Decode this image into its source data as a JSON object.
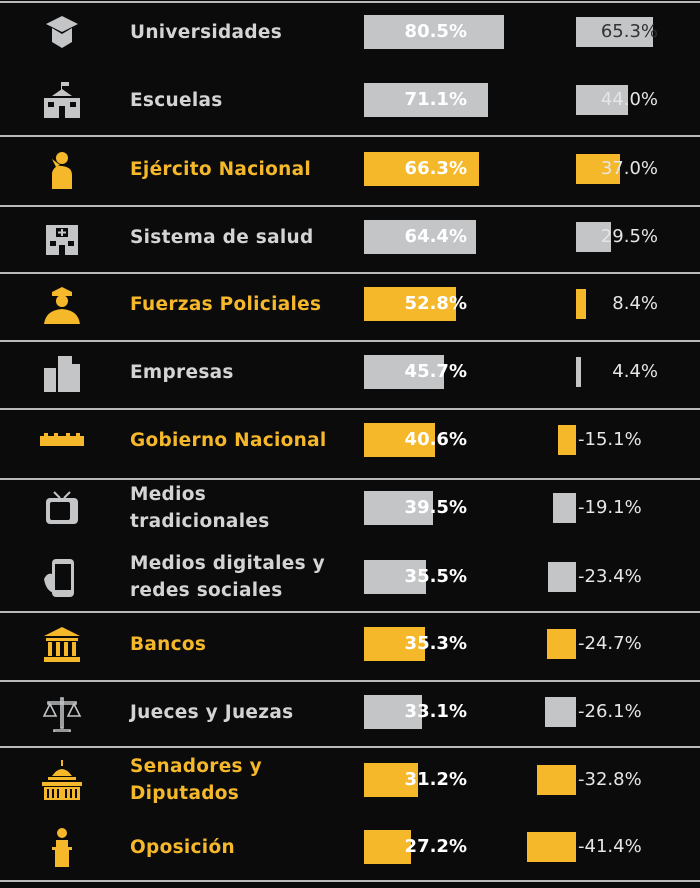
{
  "colors": {
    "highlight": "#f5b82a",
    "neutral": "#c3c5c7",
    "background": "#0b0b0b",
    "neutral_text": "#d4d4d4"
  },
  "chart_data": {
    "type": "bar",
    "title": "",
    "categories": [
      "Universidades",
      "Escuelas",
      "Ejército Nacional",
      "Sistema de salud",
      "Fuerzas Policiales",
      "Empresas",
      "Gobierno Nacional",
      "Medios tradicionales",
      "Medios digitales y redes sociales",
      "Bancos",
      "Jueces y Juezas",
      "Senadores y Diputados",
      "Oposición"
    ],
    "category_lines": [
      [
        "Universidades"
      ],
      [
        "Escuelas"
      ],
      [
        "Ejército Nacional"
      ],
      [
        "Sistema de salud"
      ],
      [
        "Fuerzas Policiales"
      ],
      [
        "Empresas"
      ],
      [
        "Gobierno Nacional"
      ],
      [
        "Medios",
        "tradicionales"
      ],
      [
        "Medios digitales y",
        "redes sociales"
      ],
      [
        "Bancos"
      ],
      [
        "Jueces y Juezas"
      ],
      [
        "Senadores y",
        "Diputados"
      ],
      [
        "Oposición"
      ]
    ],
    "icons": [
      "graduation-cap-icon",
      "school-icon",
      "soldier-icon",
      "hospital-icon",
      "police-icon",
      "buildings-icon",
      "government-icon",
      "tv-icon",
      "smartphone-icon",
      "bank-icon",
      "scales-icon",
      "capitol-icon",
      "podium-icon"
    ],
    "highlighted": [
      false,
      false,
      true,
      false,
      true,
      false,
      true,
      false,
      false,
      true,
      false,
      true,
      true
    ],
    "series": [
      {
        "name": "column-1",
        "values": [
          80.5,
          71.1,
          66.3,
          64.4,
          52.8,
          45.7,
          40.6,
          39.5,
          35.5,
          35.3,
          33.1,
          31.2,
          27.2
        ],
        "labels": [
          "80.5%",
          "71.1%",
          "66.3%",
          "64.4%",
          "52.8%",
          "45.7%",
          "40.6%",
          "39.5%",
          "35.5%",
          "35.3%",
          "33.1%",
          "31.2%",
          "27.2%"
        ]
      },
      {
        "name": "column-2",
        "values": [
          65.3,
          44.0,
          37.0,
          29.5,
          8.4,
          4.4,
          -15.1,
          -19.1,
          -23.4,
          -24.7,
          -26.1,
          -32.8,
          -41.4
        ],
        "labels": [
          "65.3%",
          "44.0%",
          "37.0%",
          "29.5%",
          "8.4%",
          "4.4%",
          "-15.1%",
          "-19.1%",
          "-23.4%",
          "-24.7%",
          "-26.1%",
          "-32.8%",
          "-41.4%"
        ]
      }
    ],
    "xlabel": "",
    "ylabel": "",
    "grid": false
  }
}
